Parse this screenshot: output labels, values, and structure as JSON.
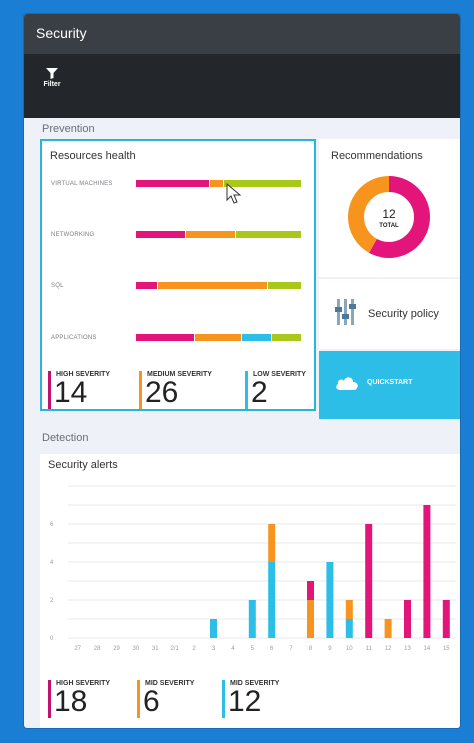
{
  "window": {
    "title": "Security"
  },
  "toolbar": {
    "filter_label": "Filter",
    "filter_icon": "filter-icon"
  },
  "prevention": {
    "section_label": "Prevention",
    "resources_health": {
      "title": "Resources health",
      "rows": [
        {
          "label": "VIRTUAL MACHINES",
          "segments": [
            {
              "color": "#e3157a",
              "value": 45
            },
            {
              "color": "#f7941d",
              "value": 8
            },
            {
              "color": "#a8c81a",
              "value": 47
            }
          ]
        },
        {
          "label": "NETWORKING",
          "segments": [
            {
              "color": "#e3157a",
              "value": 30
            },
            {
              "color": "#f7941d",
              "value": 30
            },
            {
              "color": "#a8c81a",
              "value": 40
            }
          ]
        },
        {
          "label": "SQL",
          "segments": [
            {
              "color": "#e3157a",
              "value": 13
            },
            {
              "color": "#f7941d",
              "value": 67
            },
            {
              "color": "#a8c81a",
              "value": 20
            }
          ]
        },
        {
          "label": "APPLICATIONS",
          "segments": [
            {
              "color": "#e3157a",
              "value": 36
            },
            {
              "color": "#f7941d",
              "value": 28
            },
            {
              "color": "#2cbee6",
              "value": 18
            },
            {
              "color": "#a8c81a",
              "value": 18
            }
          ]
        }
      ],
      "severity": [
        {
          "label": "HIGH SEVERITY",
          "value": "14",
          "color": "#c0126e"
        },
        {
          "label": "MEDIUM SEVERITY",
          "value": "26",
          "color": "#f7941d"
        },
        {
          "label": "LOW SEVERITY",
          "value": "2",
          "color": "#2cbee6"
        }
      ]
    },
    "recommendations": {
      "title": "Recommendations",
      "total_value": "12",
      "total_label": "TOTAL",
      "donut": [
        {
          "color": "#e3157a",
          "value": 58
        },
        {
          "color": "#f7941d",
          "value": 42
        }
      ]
    },
    "security_policy": {
      "label": "Security policy",
      "icon": "sliders-icon"
    },
    "quickstart": {
      "label": "QUICKSTART",
      "icon": "cloud-icon"
    }
  },
  "detection": {
    "section_label": "Detection",
    "security_alerts": {
      "title": "Security alerts",
      "severity": [
        {
          "label": "HIGH SEVERITY",
          "value": "18",
          "color": "#c0126e"
        },
        {
          "label": "MID SEVERITY",
          "value": "6",
          "color": "#f7941d"
        },
        {
          "label": "MID SEVERITY",
          "value": "12",
          "color": "#2cbee6"
        }
      ]
    }
  },
  "chart_data": {
    "type": "bar",
    "stacked": true,
    "categories": [
      "27",
      "28",
      "29",
      "30",
      "31",
      "2/1",
      "2",
      "3",
      "4",
      "5",
      "6",
      "7",
      "8",
      "9",
      "10",
      "11",
      "12",
      "13",
      "14",
      "15"
    ],
    "ylim": [
      0,
      8
    ],
    "yticks": [
      0,
      2,
      4,
      6
    ],
    "grid": true,
    "series": [
      {
        "color": "#2cbee6",
        "values": [
          0,
          0,
          0,
          0,
          0,
          0,
          0,
          1,
          0,
          2,
          4,
          0,
          0,
          4,
          1,
          0,
          0,
          0,
          0,
          0
        ]
      },
      {
        "color": "#f7941d",
        "values": [
          0,
          0,
          0,
          0,
          0,
          0,
          0,
          0,
          0,
          0,
          2,
          0,
          2,
          0,
          1,
          0,
          1,
          0,
          0,
          0
        ]
      },
      {
        "color": "#e3157a",
        "values": [
          0,
          0,
          0,
          0,
          0,
          0,
          0,
          0,
          0,
          0,
          0,
          0,
          1,
          0,
          0,
          6,
          0,
          2,
          7,
          2
        ]
      }
    ]
  }
}
